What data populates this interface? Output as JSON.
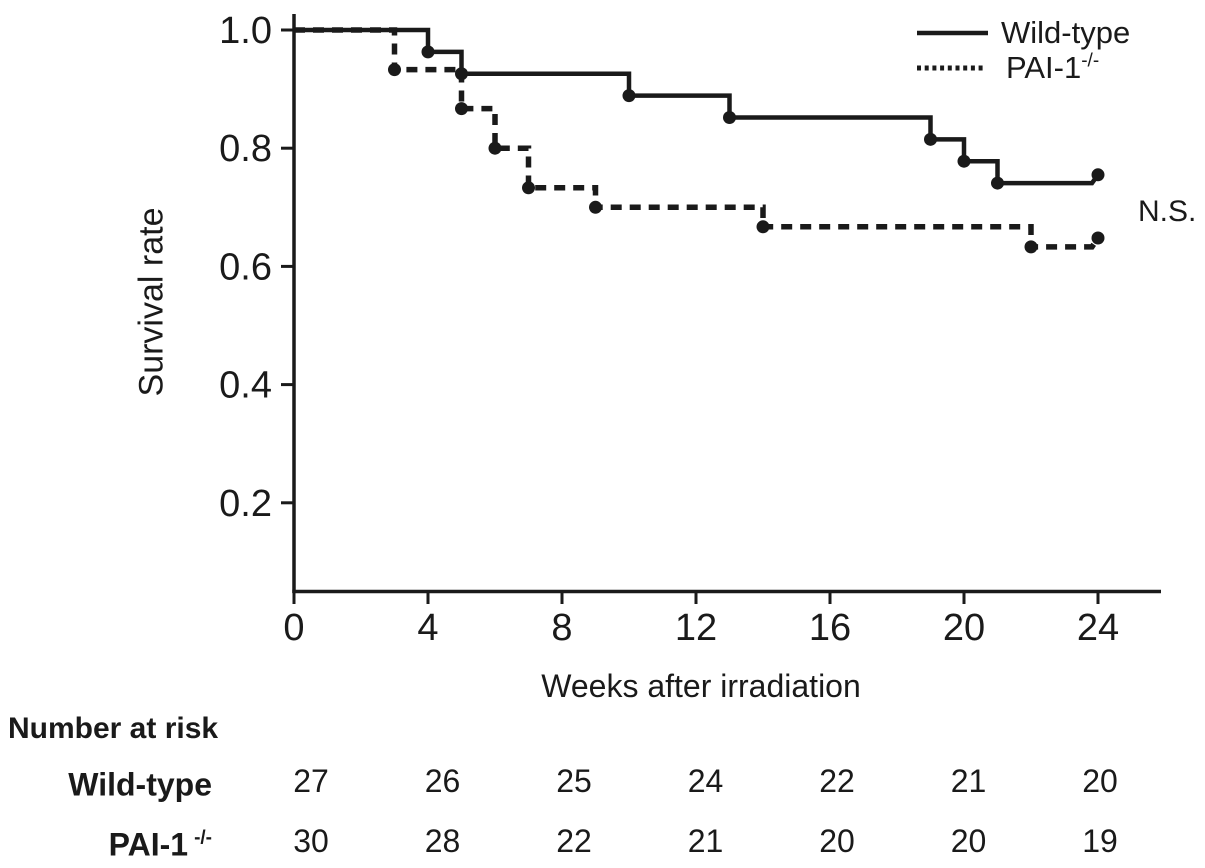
{
  "chart_data": {
    "type": "line",
    "subtype": "kaplan-meier-step",
    "title": "",
    "xlabel": "Weeks after irradiation",
    "ylabel": "Survival rate",
    "annotation": "N.S.",
    "x_ticks": [
      0,
      4,
      8,
      12,
      16,
      20,
      24
    ],
    "y_ticks": [
      1.0,
      0.8,
      0.6,
      0.4,
      0.2
    ],
    "y_tick_labels": [
      "1.0",
      "0.8",
      "0.6",
      "0.4",
      "0.2"
    ],
    "xlim": [
      0,
      24
    ],
    "ylim": [
      0.05,
      1.02
    ],
    "ink_color": "#1a1a1a",
    "legend_position": "top-right",
    "series": [
      {
        "name": "Wild-type",
        "line_style": "solid",
        "color": "#1a1a1a",
        "start": {
          "week": 0,
          "survival": 1.0
        },
        "events": [
          {
            "week": 4,
            "survival": 0.963
          },
          {
            "week": 5,
            "survival": 0.926
          },
          {
            "week": 10,
            "survival": 0.889
          },
          {
            "week": 13,
            "survival": 0.852
          },
          {
            "week": 19,
            "survival": 0.815
          },
          {
            "week": 20,
            "survival": 0.778
          },
          {
            "week": 21,
            "survival": 0.741
          }
        ],
        "end_week": 24,
        "end_marker_survival": 0.755
      },
      {
        "name": "PAI-1-/-",
        "line_style": "dashed",
        "color": "#1a1a1a",
        "start": {
          "week": 0,
          "survival": 1.0
        },
        "events": [
          {
            "week": 3,
            "survival": 0.933
          },
          {
            "week": 5,
            "survival": 0.867
          },
          {
            "week": 6,
            "survival": 0.8
          },
          {
            "week": 7,
            "survival": 0.733
          },
          {
            "week": 9,
            "survival": 0.7
          },
          {
            "week": 14,
            "survival": 0.667
          },
          {
            "week": 22,
            "survival": 0.633
          }
        ],
        "end_week": 24,
        "end_marker_survival": 0.648
      }
    ]
  },
  "legend": {
    "items": [
      {
        "label": "Wild-type",
        "swatch": "solid-line"
      },
      {
        "label_base": "PAI-1",
        "label_sup": "-/-",
        "swatch": "dotted-line"
      }
    ]
  },
  "risk_table": {
    "header": "Number at risk",
    "weeks": [
      0,
      4,
      8,
      12,
      16,
      20,
      24
    ],
    "rows": [
      {
        "label": "Wild-type",
        "label_sup": "",
        "values": [
          27,
          26,
          25,
          24,
          22,
          21,
          20
        ]
      },
      {
        "label": "PAI-1",
        "label_sup": "-/-",
        "values": [
          30,
          28,
          22,
          21,
          20,
          20,
          19
        ]
      }
    ]
  }
}
